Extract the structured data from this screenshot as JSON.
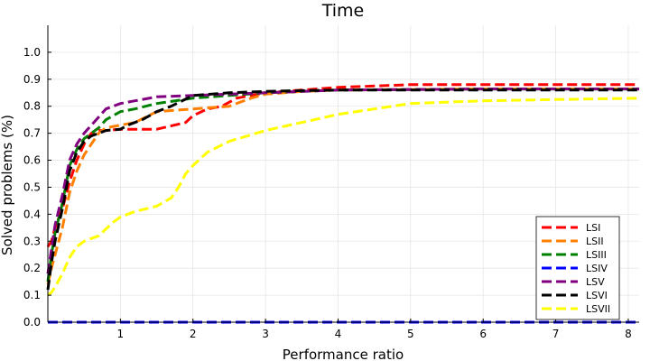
{
  "chart_data": {
    "type": "line",
    "title": "Time",
    "xlabel": "Performance ratio",
    "ylabel": "Solved problems (%)",
    "xlim": [
      0,
      8.15
    ],
    "ylim": [
      0,
      1.1
    ],
    "xticks": [
      1,
      2,
      3,
      4,
      5,
      6,
      7,
      8
    ],
    "yticks": [
      0.0,
      0.1,
      0.2,
      0.3,
      0.4,
      0.5,
      0.6,
      0.7,
      0.8,
      0.9,
      1.0
    ],
    "ytick_labels": [
      "0.0",
      "0.1",
      "0.2",
      "0.3",
      "0.4",
      "0.5",
      "0.6",
      "0.7",
      "0.8",
      "0.9",
      "1.0"
    ],
    "grid": true,
    "legend_position": "bottom-right",
    "series": [
      {
        "name": "LSI",
        "color": "#ff0000",
        "x": [
          0,
          0.05,
          0.1,
          0.2,
          0.3,
          0.4,
          0.5,
          0.6,
          0.7,
          0.8,
          1.0,
          1.5,
          1.9,
          2.0,
          2.2,
          2.4,
          2.6,
          3.0,
          3.5,
          4.0,
          5.0,
          6.0,
          7.0,
          8.15
        ],
        "y": [
          0.28,
          0.3,
          0.35,
          0.42,
          0.52,
          0.6,
          0.66,
          0.7,
          0.71,
          0.71,
          0.715,
          0.715,
          0.74,
          0.765,
          0.79,
          0.8,
          0.83,
          0.85,
          0.86,
          0.87,
          0.88,
          0.88,
          0.88,
          0.88
        ]
      },
      {
        "name": "LSII",
        "color": "#ff8000",
        "x": [
          0,
          0.05,
          0.1,
          0.2,
          0.3,
          0.4,
          0.5,
          0.6,
          0.7,
          0.8,
          1.0,
          1.2,
          1.5,
          2.0,
          2.5,
          2.8,
          3.0,
          3.5,
          4.0,
          5.0,
          6.0,
          7.0,
          8.15
        ],
        "y": [
          0.14,
          0.2,
          0.25,
          0.35,
          0.48,
          0.56,
          0.62,
          0.66,
          0.7,
          0.72,
          0.73,
          0.74,
          0.78,
          0.79,
          0.8,
          0.83,
          0.845,
          0.855,
          0.86,
          0.862,
          0.864,
          0.864,
          0.864
        ]
      },
      {
        "name": "LSIII",
        "color": "#008000",
        "x": [
          0,
          0.05,
          0.1,
          0.2,
          0.3,
          0.4,
          0.5,
          0.6,
          0.7,
          0.8,
          1.0,
          1.2,
          1.5,
          2.0,
          2.5,
          3.0,
          3.5,
          4.0,
          5.0,
          6.0,
          7.0,
          8.15
        ],
        "y": [
          0.15,
          0.25,
          0.33,
          0.44,
          0.58,
          0.64,
          0.68,
          0.7,
          0.72,
          0.75,
          0.78,
          0.79,
          0.81,
          0.83,
          0.84,
          0.85,
          0.855,
          0.86,
          0.862,
          0.864,
          0.864,
          0.864
        ]
      },
      {
        "name": "LSIV",
        "color": "#0000ff",
        "x": [
          0,
          1,
          2,
          3,
          4,
          5,
          6,
          7,
          8,
          8.15
        ],
        "y": [
          0,
          0,
          0,
          0,
          0,
          0,
          0,
          0,
          0,
          0
        ]
      },
      {
        "name": "LSV",
        "color": "#800080",
        "x": [
          0,
          0.05,
          0.1,
          0.2,
          0.3,
          0.4,
          0.5,
          0.6,
          0.7,
          0.8,
          1.0,
          1.2,
          1.5,
          2.0,
          2.5,
          3.0,
          3.5,
          4.0,
          5.0,
          6.0,
          7.0,
          8.15
        ],
        "y": [
          0.18,
          0.27,
          0.36,
          0.47,
          0.6,
          0.66,
          0.7,
          0.73,
          0.76,
          0.79,
          0.81,
          0.82,
          0.835,
          0.84,
          0.845,
          0.85,
          0.855,
          0.86,
          0.862,
          0.864,
          0.864,
          0.864
        ]
      },
      {
        "name": "LSVI",
        "color": "#000000",
        "x": [
          0,
          0.05,
          0.1,
          0.2,
          0.3,
          0.4,
          0.5,
          0.6,
          0.7,
          0.8,
          1.0,
          1.1,
          1.3,
          1.5,
          1.7,
          2.0,
          2.5,
          3.0,
          3.5,
          4.0,
          5.0,
          6.0,
          7.0,
          8.15
        ],
        "y": [
          0.12,
          0.22,
          0.3,
          0.42,
          0.56,
          0.63,
          0.67,
          0.69,
          0.7,
          0.71,
          0.715,
          0.73,
          0.75,
          0.78,
          0.8,
          0.84,
          0.85,
          0.855,
          0.858,
          0.86,
          0.86,
          0.86,
          0.86,
          0.86
        ]
      },
      {
        "name": "LSVII",
        "color": "#ffff00",
        "x": [
          0,
          0.05,
          0.1,
          0.2,
          0.3,
          0.4,
          0.5,
          0.7,
          0.9,
          1.0,
          1.2,
          1.5,
          1.7,
          1.8,
          1.9,
          2.0,
          2.2,
          2.5,
          3.0,
          3.5,
          4.0,
          4.5,
          5.0,
          6.0,
          7.0,
          8.15
        ],
        "y": [
          0.1,
          0.11,
          0.13,
          0.18,
          0.24,
          0.28,
          0.3,
          0.32,
          0.37,
          0.39,
          0.41,
          0.43,
          0.46,
          0.5,
          0.55,
          0.58,
          0.63,
          0.67,
          0.71,
          0.74,
          0.77,
          0.79,
          0.81,
          0.82,
          0.825,
          0.83
        ]
      }
    ]
  }
}
